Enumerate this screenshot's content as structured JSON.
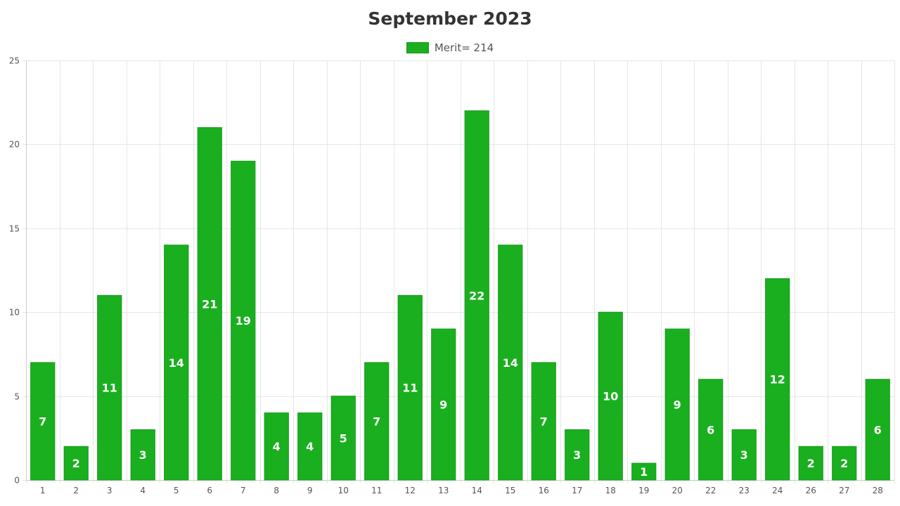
{
  "colors": {
    "bar": "#1aaf1f",
    "bar_border": "#159a1a",
    "grid": "#e6e6e6",
    "axis": "#cccccc"
  },
  "chart_data": {
    "type": "bar",
    "title": "September 2023",
    "legend": {
      "label": "Merit= 214",
      "position": "top-center"
    },
    "categories": [
      "1",
      "2",
      "3",
      "4",
      "5",
      "6",
      "7",
      "8",
      "9",
      "10",
      "11",
      "12",
      "13",
      "14",
      "15",
      "16",
      "17",
      "18",
      "19",
      "20",
      "22",
      "23",
      "24",
      "26",
      "27",
      "28"
    ],
    "series": [
      {
        "name": "Merit= 214",
        "values": [
          7,
          2,
          11,
          3,
          14,
          21,
          19,
          4,
          4,
          5,
          7,
          11,
          9,
          22,
          14,
          7,
          3,
          10,
          1,
          9,
          6,
          3,
          12,
          2,
          2,
          6
        ]
      }
    ],
    "ylim": [
      0,
      25
    ],
    "yticks": [
      0,
      5,
      10,
      15,
      20,
      25
    ],
    "grid": true,
    "data_labels": true
  }
}
